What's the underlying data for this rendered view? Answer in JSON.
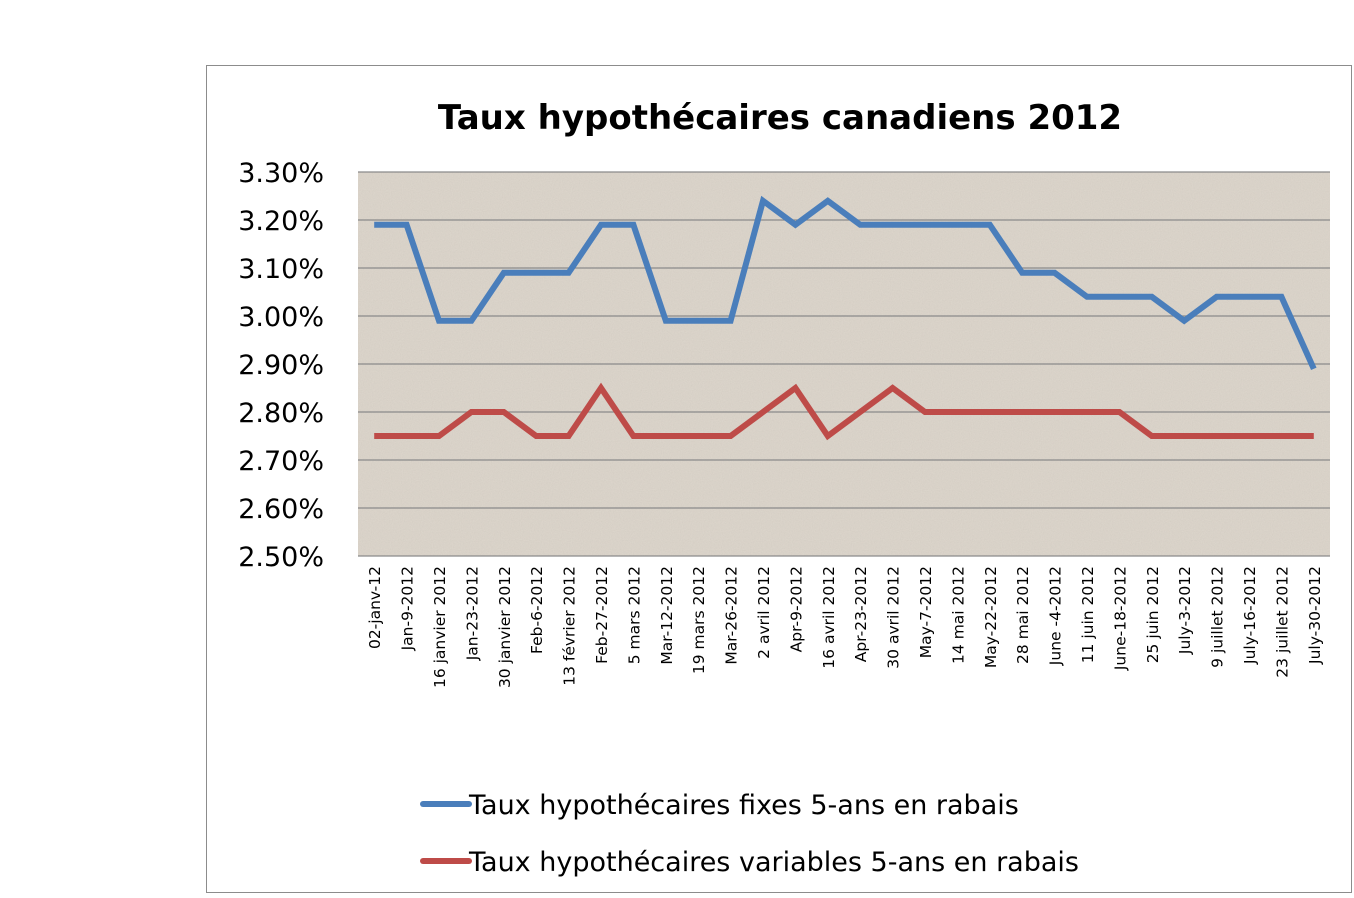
{
  "chart_data": {
    "type": "line",
    "title": "Taux hypothécaires canadiens 2012",
    "xlabel": "",
    "ylabel": "",
    "ylim": [
      0.025,
      0.033
    ],
    "y_ticks": [
      0.025,
      0.026,
      0.027,
      0.028,
      0.029,
      0.03,
      0.031,
      0.032,
      0.033
    ],
    "y_tick_labels": [
      "2.50%",
      "2.60%",
      "2.70%",
      "2.80%",
      "2.90%",
      "3.00%",
      "3.10%",
      "3.20%",
      "3.30%"
    ],
    "grid": true,
    "legend_position": "bottom",
    "categories": [
      "02-janv-12",
      "Jan-9-2012",
      "16 janvier 2012",
      "Jan-23-2012",
      "30 janvier 2012",
      "Feb-6-2012",
      "13 février 2012",
      "Feb-27-2012",
      "5 mars 2012",
      "Mar-12-2012",
      "19 mars 2012",
      "Mar-26-2012",
      "2 avril 2012",
      "Apr-9-2012",
      "16 avril 2012",
      "Apr-23-2012",
      "30 avril 2012",
      "May-7-2012",
      "14 mai 2012",
      "May-22-2012",
      "28 mai 2012",
      "June -4-2012",
      "11 juin 2012",
      "June-18-2012",
      "25 juin 2012",
      "July-3-2012",
      "9 juillet 2012",
      "July-16-2012",
      "23 juillet 2012",
      "July-30-2012"
    ],
    "series": [
      {
        "name": "Taux hypothécaires fixes 5-ans en rabais",
        "color": "#4a7ebb",
        "values": [
          0.0319,
          0.0319,
          0.0299,
          0.0299,
          0.0309,
          0.0309,
          0.0309,
          0.0319,
          0.0319,
          0.0299,
          0.0299,
          0.0299,
          0.0324,
          0.0319,
          0.0324,
          0.0319,
          0.0319,
          0.0319,
          0.0319,
          0.0319,
          0.0309,
          0.0309,
          0.0304,
          0.0304,
          0.0304,
          0.0299,
          0.0304,
          0.0304,
          0.0304,
          0.0289
        ]
      },
      {
        "name": "Taux hypothécaires variables 5-ans en rabais",
        "color": "#be4b48",
        "values": [
          0.0275,
          0.0275,
          0.0275,
          0.028,
          0.028,
          0.0275,
          0.0275,
          0.0285,
          0.0275,
          0.0275,
          0.0275,
          0.0275,
          0.028,
          0.0285,
          0.0275,
          0.028,
          0.0285,
          0.028,
          0.028,
          0.028,
          0.028,
          0.028,
          0.028,
          0.028,
          0.0275,
          0.0275,
          0.0275,
          0.0275,
          0.0275,
          0.0275
        ]
      }
    ],
    "plot_background": "#ddd6cc",
    "gridline_color": "#8a8a8a"
  }
}
